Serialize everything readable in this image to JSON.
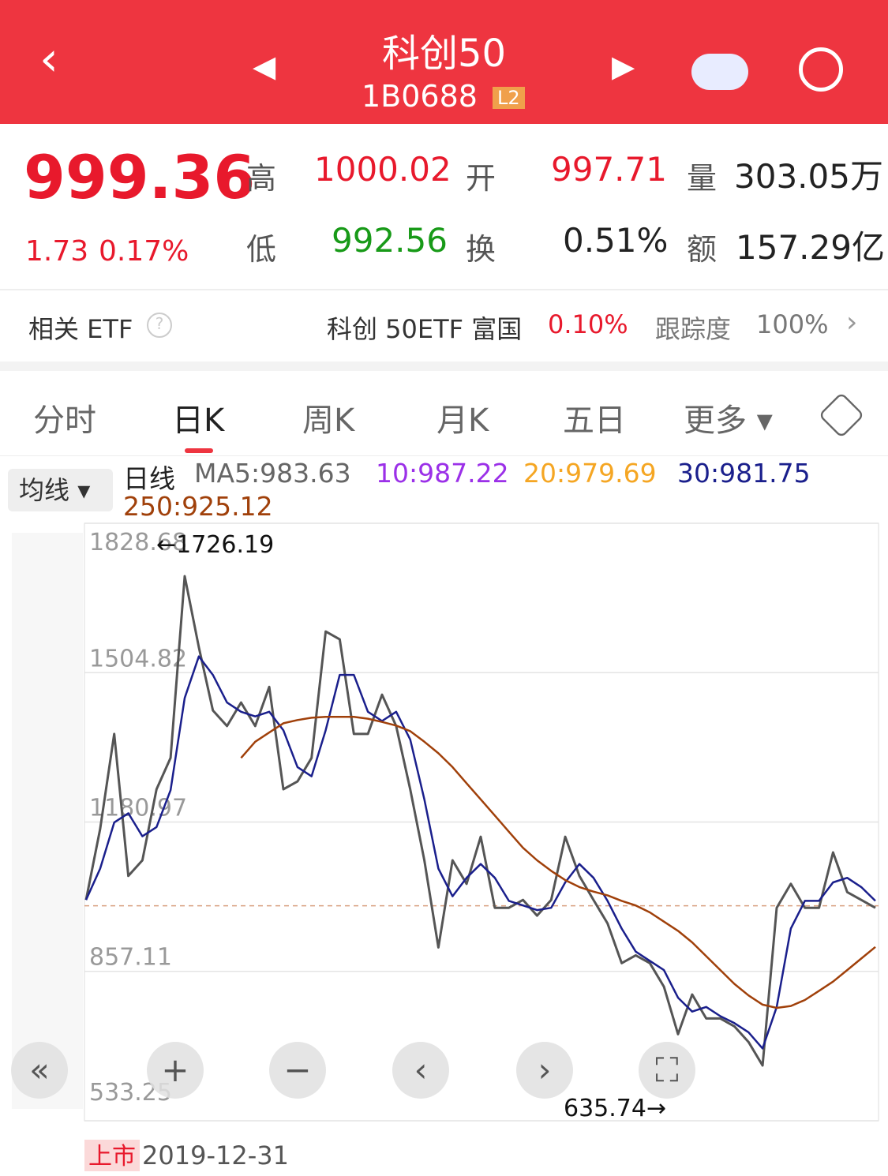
{
  "header": {
    "title": "科创50",
    "code": "1B0688",
    "badge": "L2"
  },
  "quote": {
    "price": "999.36",
    "change": "1.73",
    "change_pct": "0.17%",
    "high_label": "高",
    "high": "1000.02",
    "open_label": "开",
    "open": "997.71",
    "volume_label": "量",
    "volume": "303.05万",
    "low_label": "低",
    "low": "992.56",
    "turnover_label": "换",
    "turnover": "0.51%",
    "amount_label": "额",
    "amount": "157.29亿"
  },
  "etf": {
    "label": "相关 ETF",
    "name": "科创 50ETF 富国",
    "change_pct": "0.10%",
    "tracking_label": "跟踪度",
    "tracking": "100%"
  },
  "tabs": [
    "分时",
    "日K",
    "周K",
    "月K",
    "五日",
    "更多"
  ],
  "ma_button": "均线",
  "ma_legend": [
    {
      "text": "日线",
      "color": "#222222"
    },
    {
      "text": "MA5:983.63",
      "color": "#666666"
    },
    {
      "text": "10:987.22",
      "color": "#9b30e8"
    },
    {
      "text": "20:979.69",
      "color": "#f5a623"
    },
    {
      "text": "30:981.75",
      "color": "#1a1f8c"
    },
    {
      "text": "250:925.12",
      "color": "#a0400a"
    }
  ],
  "chart_data": {
    "type": "line",
    "ylim": [
      533.25,
      1828.68
    ],
    "yticks": [
      1828.68,
      1504.82,
      1180.97,
      857.11,
      533.25
    ],
    "grid": true,
    "series": [
      {
        "color": "#555555",
        "values": [
          1012,
          1166,
          1372,
          1064,
          1098,
          1252,
          1320,
          1714,
          1560,
          1423,
          1389,
          1440,
          1389,
          1474,
          1252,
          1269,
          1320,
          1594,
          1577,
          1372,
          1372,
          1457,
          1389,
          1252,
          1098,
          909,
          1098,
          1047,
          1149,
          995,
          995,
          1012,
          978,
          1012,
          1149,
          1064,
          1012,
          961,
          875,
          892,
          875,
          824,
          721,
          807,
          755,
          755,
          738,
          704,
          653,
          995,
          1047,
          995,
          995,
          1115,
          1029,
          1012,
          995
        ]
      },
      {
        "color": "#1a1f8c",
        "values": [
          1012,
          1080,
          1180,
          1200,
          1150,
          1170,
          1250,
          1450,
          1540,
          1500,
          1440,
          1420,
          1410,
          1420,
          1380,
          1300,
          1280,
          1380,
          1500,
          1500,
          1420,
          1400,
          1420,
          1360,
          1230,
          1080,
          1020,
          1060,
          1090,
          1060,
          1010,
          1000,
          990,
          995,
          1050,
          1090,
          1060,
          1010,
          950,
          900,
          880,
          860,
          800,
          770,
          780,
          760,
          745,
          725,
          690,
          780,
          950,
          1010,
          1010,
          1050,
          1060,
          1040,
          1010
        ]
      },
      {
        "color": "#a0400a",
        "values": [
          null,
          null,
          null,
          null,
          null,
          null,
          null,
          null,
          null,
          null,
          null,
          1320,
          1355,
          1375,
          1395,
          1402,
          1407,
          1409,
          1409,
          1409,
          1405,
          1398,
          1390,
          1378,
          1355,
          1330,
          1300,
          1265,
          1230,
          1195,
          1160,
          1125,
          1098,
          1075,
          1055,
          1040,
          1030,
          1022,
          1010,
          1000,
          985,
          965,
          945,
          920,
          890,
          860,
          830,
          805,
          785,
          778,
          782,
          795,
          815,
          835,
          860,
          885,
          910
        ]
      }
    ],
    "annotations": [
      "←1726.19",
      "635.74→"
    ],
    "listing_label": "上市",
    "start_date": "2019-12-31"
  }
}
